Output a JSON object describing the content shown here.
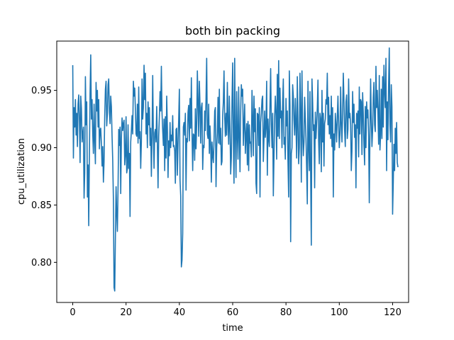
{
  "chart_data": {
    "type": "line",
    "title": "both bin packing",
    "xlabel": "time",
    "ylabel": "cpu_utilization",
    "xlim": [
      -6,
      126
    ],
    "ylim": [
      0.765,
      0.993
    ],
    "xticks": [
      0,
      20,
      40,
      60,
      80,
      100,
      120
    ],
    "yticks": [
      0.8,
      0.85,
      0.9,
      0.95
    ],
    "xtick_labels": [
      "0",
      "20",
      "40",
      "60",
      "80",
      "100",
      "120"
    ],
    "ytick_labels": [
      "0.80",
      "0.85",
      "0.90",
      "0.95"
    ],
    "grid": false,
    "legend": "none",
    "line_color": "#1f77b4",
    "x_start": 0,
    "x_step": 0.25,
    "values": [
      0.972,
      0.891,
      0.935,
      0.918,
      0.942,
      0.911,
      0.93,
      0.901,
      0.938,
      0.946,
      0.925,
      0.887,
      0.945,
      0.934,
      0.905,
      0.912,
      0.918,
      0.856,
      0.878,
      0.962,
      0.92,
      0.94,
      0.857,
      0.885,
      0.832,
      0.893,
      0.947,
      0.981,
      0.925,
      0.942,
      0.912,
      0.895,
      0.938,
      0.905,
      0.886,
      0.957,
      0.932,
      0.95,
      0.918,
      0.942,
      0.899,
      0.915,
      0.917,
      0.903,
      0.884,
      0.901,
      0.87,
      0.888,
      0.928,
      0.951,
      0.958,
      0.919,
      0.93,
      0.955,
      0.96,
      0.931,
      0.921,
      0.945,
      0.936,
      0.91,
      0.889,
      0.855,
      0.778,
      0.775,
      0.822,
      0.866,
      0.842,
      0.827,
      0.865,
      0.916,
      0.902,
      0.918,
      0.86,
      0.908,
      0.926,
      0.915,
      0.921,
      0.924,
      0.885,
      0.893,
      0.927,
      0.878,
      0.882,
      0.92,
      0.882,
      0.895,
      0.84,
      0.905,
      0.915,
      0.928,
      0.912,
      0.958,
      0.945,
      0.952,
      0.934,
      0.912,
      0.91,
      0.938,
      0.904,
      0.953,
      0.908,
      0.914,
      0.882,
      0.905,
      0.96,
      0.925,
      0.935,
      0.972,
      0.942,
      0.965,
      0.912,
      0.93,
      0.9,
      0.94,
      0.92,
      0.935,
      0.902,
      0.917,
      0.875,
      0.91,
      0.963,
      0.911,
      0.882,
      0.913,
      0.916,
      0.905,
      0.936,
      0.903,
      0.865,
      0.91,
      0.928,
      0.949,
      0.932,
      0.971,
      0.93,
      0.915,
      0.902,
      0.925,
      0.88,
      0.927,
      0.891,
      0.945,
      0.918,
      0.874,
      0.906,
      0.893,
      0.922,
      0.9,
      0.911,
      0.906,
      0.928,
      0.901,
      0.902,
      0.897,
      0.869,
      0.916,
      0.917,
      0.876,
      0.903,
      0.925,
      0.951,
      0.872,
      0.858,
      0.796,
      0.802,
      0.825,
      0.918,
      0.922,
      0.911,
      0.93,
      0.863,
      0.908,
      0.905,
      0.931,
      0.937,
      0.906,
      0.943,
      0.917,
      0.961,
      0.912,
      0.88,
      0.912,
      0.911,
      0.889,
      0.934,
      0.899,
      0.92,
      0.967,
      0.94,
      0.91,
      0.958,
      0.937,
      0.904,
      0.935,
      0.939,
      0.881,
      0.902,
      0.9,
      0.932,
      0.915,
      0.942,
      0.978,
      0.912,
      0.908,
      0.938,
      0.895,
      0.919,
      0.903,
      0.87,
      0.905,
      0.893,
      0.887,
      0.907,
      0.932,
      0.935,
      0.866,
      0.9,
      0.913,
      0.944,
      0.904,
      0.951,
      0.903,
      0.917,
      0.885,
      0.888,
      0.928,
      0.94,
      0.967,
      0.927,
      0.91,
      0.93,
      0.911,
      0.957,
      0.922,
      0.903,
      0.945,
      0.917,
      0.877,
      0.891,
      0.941,
      0.974,
      0.91,
      0.869,
      0.978,
      0.91,
      0.874,
      0.949,
      0.91,
      0.89,
      0.953,
      0.909,
      0.879,
      0.932,
      0.955,
      0.945,
      0.951,
      0.902,
      0.92,
      0.938,
      0.895,
      0.91,
      0.921,
      0.885,
      0.923,
      0.88,
      0.92,
      0.904,
      0.905,
      0.892,
      0.95,
      0.927,
      0.893,
      0.945,
      0.914,
      0.934,
      0.869,
      0.86,
      0.93,
      0.929,
      0.902,
      0.935,
      0.857,
      0.922,
      0.93,
      0.942,
      0.945,
      0.888,
      0.908,
      0.932,
      0.909,
      0.919,
      0.958,
      0.876,
      0.925,
      0.908,
      0.901,
      0.938,
      0.969,
      0.92,
      0.9,
      0.93,
      0.858,
      0.892,
      0.927,
      0.945,
      0.93,
      0.89,
      0.964,
      0.91,
      0.976,
      0.908,
      0.952,
      0.926,
      0.932,
      0.9,
      0.94,
      0.96,
      0.903,
      0.909,
      0.89,
      0.943,
      0.919,
      0.932,
      0.887,
      0.857,
      0.967,
      0.937,
      0.818,
      0.895,
      0.9,
      0.955,
      0.945,
      0.924,
      0.911,
      0.943,
      0.92,
      0.891,
      0.962,
      0.921,
      0.886,
      0.9,
      0.965,
      0.932,
      0.87,
      0.967,
      0.912,
      0.893,
      0.905,
      0.944,
      0.926,
      0.908,
      0.882,
      0.851,
      0.958,
      0.9,
      0.88,
      0.949,
      0.878,
      0.815,
      0.96,
      0.94,
      0.915,
      0.92,
      0.865,
      0.931,
      0.908,
      0.921,
      0.935,
      0.959,
      0.906,
      0.886,
      0.93,
      0.925,
      0.879,
      0.95,
      0.905,
      0.93,
      0.884,
      0.921,
      0.925,
      0.942,
      0.938,
      0.965,
      0.92,
      0.944,
      0.912,
      0.928,
      0.908,
      0.945,
      0.901,
      0.935,
      0.857,
      0.912,
      0.898,
      0.93,
      0.92,
      0.905,
      0.927,
      0.945,
      0.92,
      0.9,
      0.912,
      0.953,
      0.92,
      0.905,
      0.93,
      0.965,
      0.942,
      0.915,
      0.901,
      0.94,
      0.946,
      0.908,
      0.916,
      0.96,
      0.926,
      0.93,
      0.92,
      0.88,
      0.897,
      0.949,
      0.922,
      0.938,
      0.909,
      0.92,
      0.865,
      0.93,
      0.917,
      0.932,
      0.892,
      0.953,
      0.912,
      0.942,
      0.94,
      0.894,
      0.948,
      0.93,
      0.902,
      0.885,
      0.936,
      0.9,
      0.94,
      0.926,
      0.933,
      0.91,
      0.852,
      0.913,
      0.96,
      0.925,
      0.901,
      0.915,
      0.944,
      0.957,
      0.92,
      0.914,
      0.971,
      0.935,
      0.95,
      0.93,
      0.903,
      0.963,
      0.898,
      0.911,
      0.951,
      0.908,
      0.962,
      0.918,
      0.972,
      0.95,
      0.935,
      0.978,
      0.88,
      0.94,
      0.907,
      0.955,
      0.987,
      0.92,
      0.905,
      0.955,
      0.936,
      0.842,
      0.87,
      0.903,
      0.88,
      0.917,
      0.895,
      0.922,
      0.887,
      0.883
    ]
  }
}
